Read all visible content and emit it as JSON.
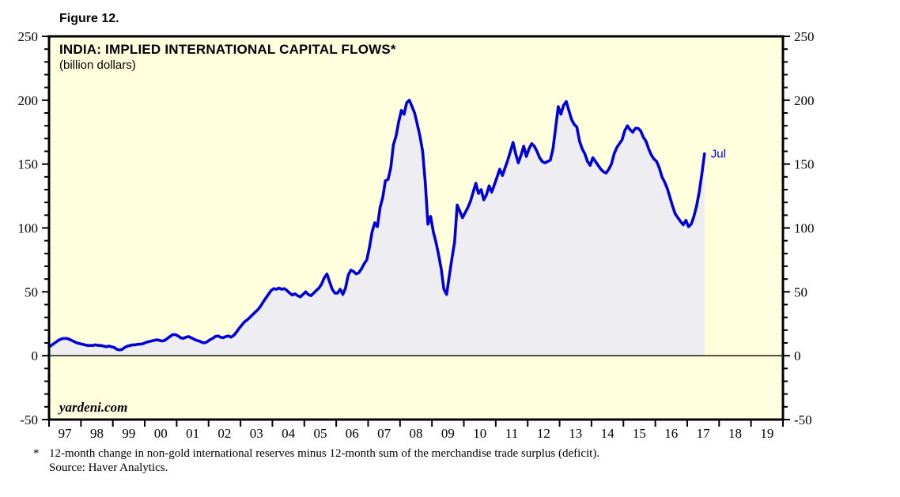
{
  "figure_label": "Figure 12.",
  "chart": {
    "title": "INDIA: IMPLIED INTERNATIONAL CAPITAL FLOWS*",
    "subtitle": "(billion dollars)",
    "watermark": "yardeni.com",
    "last_point_label": "Jul"
  },
  "footnote": {
    "marker": "*",
    "line1": "12-month change in non-gold international reserves minus 12-month sum of the merchandise trade surplus (deficit).",
    "line2": "Source: Haver Analytics."
  },
  "chart_data": {
    "type": "line",
    "title": "INDIA: IMPLIED INTERNATIONAL CAPITAL FLOWS*",
    "ylabel": "(billion dollars)",
    "ylim": [
      -50,
      250
    ],
    "y_major_ticks": [
      -50,
      0,
      50,
      100,
      150,
      200,
      250
    ],
    "y_minor_step": 10,
    "grid": "off",
    "legend": "none",
    "x_year_labels": [
      "97",
      "98",
      "99",
      "00",
      "01",
      "02",
      "03",
      "04",
      "05",
      "06",
      "07",
      "08",
      "09",
      "10",
      "11",
      "12",
      "13",
      "14",
      "15",
      "16",
      "17",
      "18",
      "19"
    ],
    "x_range_years": 23,
    "series_start": "1997-01",
    "series_end": "2017-07",
    "x_end_label": "Jul",
    "series": [
      {
        "name": "Implied international capital flows, 12-month flow (monthly, Jan 1997 - Jul 2017)",
        "monthly_values": [
          7.5,
          9,
          10.5,
          12,
          13,
          13.5,
          13.5,
          13,
          12,
          11,
          10,
          9.5,
          9,
          8.5,
          8,
          8,
          8,
          8.5,
          8,
          8,
          7.5,
          7,
          7.5,
          7,
          6.5,
          5,
          4.5,
          5,
          6.5,
          7.5,
          8,
          8.5,
          8.5,
          9,
          9,
          9.5,
          10.5,
          11,
          11.5,
          12,
          12.5,
          12,
          11.5,
          12,
          13.5,
          15,
          16.5,
          16.5,
          15.5,
          14,
          13.5,
          14.5,
          15,
          14,
          13,
          12,
          11.5,
          10.5,
          10,
          11,
          12.5,
          13.5,
          15,
          15.5,
          14.5,
          14,
          15,
          15.5,
          14.5,
          16,
          18.5,
          21.5,
          24,
          26.5,
          28,
          30,
          32,
          34,
          36,
          38.5,
          42,
          45,
          48,
          51,
          52.5,
          52,
          53,
          52,
          52.5,
          51,
          49,
          47.5,
          48.5,
          47,
          46,
          48,
          50,
          48,
          47,
          49,
          51,
          53,
          56,
          61,
          64,
          58,
          52,
          49,
          49,
          52,
          48,
          53,
          63,
          67,
          66,
          64,
          65,
          68,
          72,
          75,
          85,
          97,
          104,
          101,
          116,
          124,
          137,
          138,
          147,
          165,
          172,
          183,
          192,
          189,
          198,
          200,
          195,
          190,
          181,
          172,
          160,
          135,
          103,
          109,
          97,
          89,
          79,
          68,
          52,
          48,
          62,
          76,
          89,
          118,
          113,
          108,
          112,
          116,
          121,
          128,
          135,
          127,
          130,
          122,
          126,
          133,
          128,
          134,
          140,
          146,
          141,
          147,
          153,
          160,
          167,
          158,
          151,
          157,
          164,
          156,
          162,
          166,
          164,
          160,
          155,
          152,
          151,
          152,
          153,
          162,
          178,
          195,
          189,
          196,
          199,
          192,
          185,
          181,
          179,
          168,
          162,
          158,
          152,
          149,
          155,
          152,
          149,
          146,
          144,
          143,
          146,
          150,
          158,
          163,
          166,
          169,
          176,
          180,
          177,
          175,
          178,
          178,
          176,
          171,
          168,
          162,
          157,
          154,
          152,
          147,
          140,
          136,
          131,
          124,
          117,
          111,
          108,
          105,
          102.5,
          106,
          101,
          103,
          109,
          117,
          128,
          142,
          158
        ]
      }
    ],
    "colors": {
      "line": "#0000d8",
      "fill": "#ededf2",
      "plot_bg": "#ffffde",
      "axis": "#000000",
      "last_point_label": "#0000d8"
    }
  }
}
